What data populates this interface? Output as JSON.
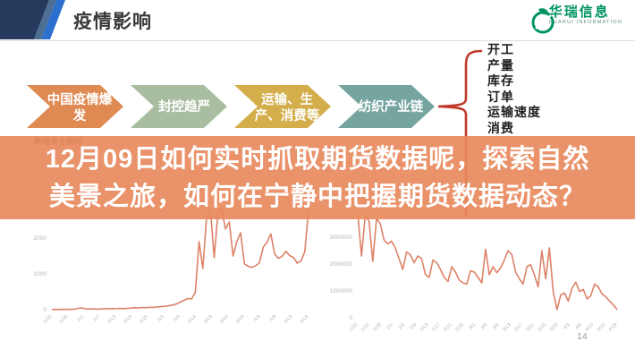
{
  "header": {
    "title": "疫情影响",
    "logo": {
      "name_cn": "华瑞信息",
      "name_en": "HUARUI INFORMATION",
      "brand_color": "#009460"
    }
  },
  "flow": {
    "arrows": [
      {
        "label_line1": "中国疫情爆",
        "label_line2": "发",
        "color": "#de8a52"
      },
      {
        "label_line1": "封控趋严",
        "label_line2": "",
        "color": "#a9bda0"
      },
      {
        "label_line1": "运输、生",
        "label_line2": "产、消费等",
        "color": "#d3ae4b"
      },
      {
        "label_line1": "纺织产业链",
        "label_line2": "",
        "color": "#76a5a0"
      }
    ]
  },
  "impact_list": {
    "brace_color": "#bf3a2b",
    "items": [
      "开工",
      "产量",
      "库存",
      "订单",
      "运输速度",
      "消费"
    ]
  },
  "overlay_banner": {
    "lines": [
      "12月09日如何实时抓取期货数据呢，探索自然",
      "美景之旅，如何在宁静中把握期货数据动态？"
    ],
    "bg_color": "#e8895c",
    "text_color": "#ffffff"
  },
  "chart_data": [
    {
      "type": "line",
      "title": "新增本土病例",
      "line_color": "#dd8268",
      "ylim": [
        0,
        2900
      ],
      "y_ticks": [
        {
          "value": 0,
          "label": "0"
        },
        {
          "value": 1000,
          "label": "1000"
        },
        {
          "value": 2000,
          "label": "2000"
        }
      ],
      "x_tick_labels": [
        "1/20",
        "1/26",
        "2/1",
        "2/7",
        "2/13",
        "2/19",
        "2/25",
        "3/3",
        "3/9",
        "3/14",
        "3/18",
        "3/24",
        "3/29",
        "4/3",
        "4/8",
        "4/13",
        "4/18"
      ],
      "values": [
        6,
        8,
        5,
        9,
        7,
        10,
        12,
        35,
        48,
        26,
        18,
        22,
        16,
        20,
        28,
        24,
        30,
        26,
        34,
        30,
        38,
        44,
        55,
        48,
        60,
        55,
        68,
        64,
        78,
        85,
        95,
        110,
        130,
        160,
        210,
        260,
        310,
        300,
        480,
        1900,
        1150,
        2600,
        2780,
        1450,
        2700,
        2820,
        2250,
        2450,
        1500,
        1900,
        2150,
        1280,
        1210,
        1180,
        1230,
        1310,
        1750,
        1880,
        2120,
        1560,
        1430,
        1490,
        1630,
        1510,
        1460,
        1300,
        1360,
        1620,
        2780
      ]
    },
    {
      "type": "line",
      "title": "",
      "line_color": "#dd8268",
      "ylim": [
        0,
        3800000
      ],
      "y_ticks": [
        {
          "value": 0,
          "label": "0"
        },
        {
          "value": 1000000,
          "label": "1000000"
        },
        {
          "value": 2000000,
          "label": "2000000"
        },
        {
          "value": 3000000,
          "label": "3000000"
        }
      ],
      "x_tick_labels": [
        "1/20",
        "1/24",
        "1/28",
        "2/1",
        "2/5",
        "2/9",
        "2/13",
        "2/17",
        "2/21",
        "2/25",
        "3/1",
        "3/5",
        "3/9",
        "3/13",
        "3/17",
        "3/21",
        "3/25",
        "3/29",
        "4/2",
        "4/6",
        "4/10",
        "4/14",
        "4/18"
      ],
      "values": [
        3900000,
        2300000,
        3800000,
        3600000,
        2100000,
        3700000,
        3500000,
        2900000,
        2750000,
        2850000,
        2600000,
        2200000,
        1800000,
        2450000,
        2350000,
        2050000,
        2300000,
        2200000,
        1600000,
        1500000,
        2150000,
        2050000,
        1800000,
        1500000,
        1350000,
        1900000,
        1700000,
        1400000,
        1300000,
        1250000,
        1750000,
        1700000,
        1500000,
        1300000,
        2550000,
        1600000,
        1900000,
        1680000,
        1850000,
        2150000,
        2500000,
        2350000,
        1700000,
        1450000,
        1250000,
        1900000,
        1980000,
        1600000,
        1150000,
        2500000,
        1450000,
        2600000,
        950000,
        300000,
        850000,
        920000,
        620000,
        1100000,
        1320000,
        980000,
        1050000,
        700000,
        820000,
        1250000,
        1150000,
        880000,
        780000,
        620000,
        480000,
        300000
      ]
    }
  ],
  "footer": {
    "page_number": "14"
  }
}
